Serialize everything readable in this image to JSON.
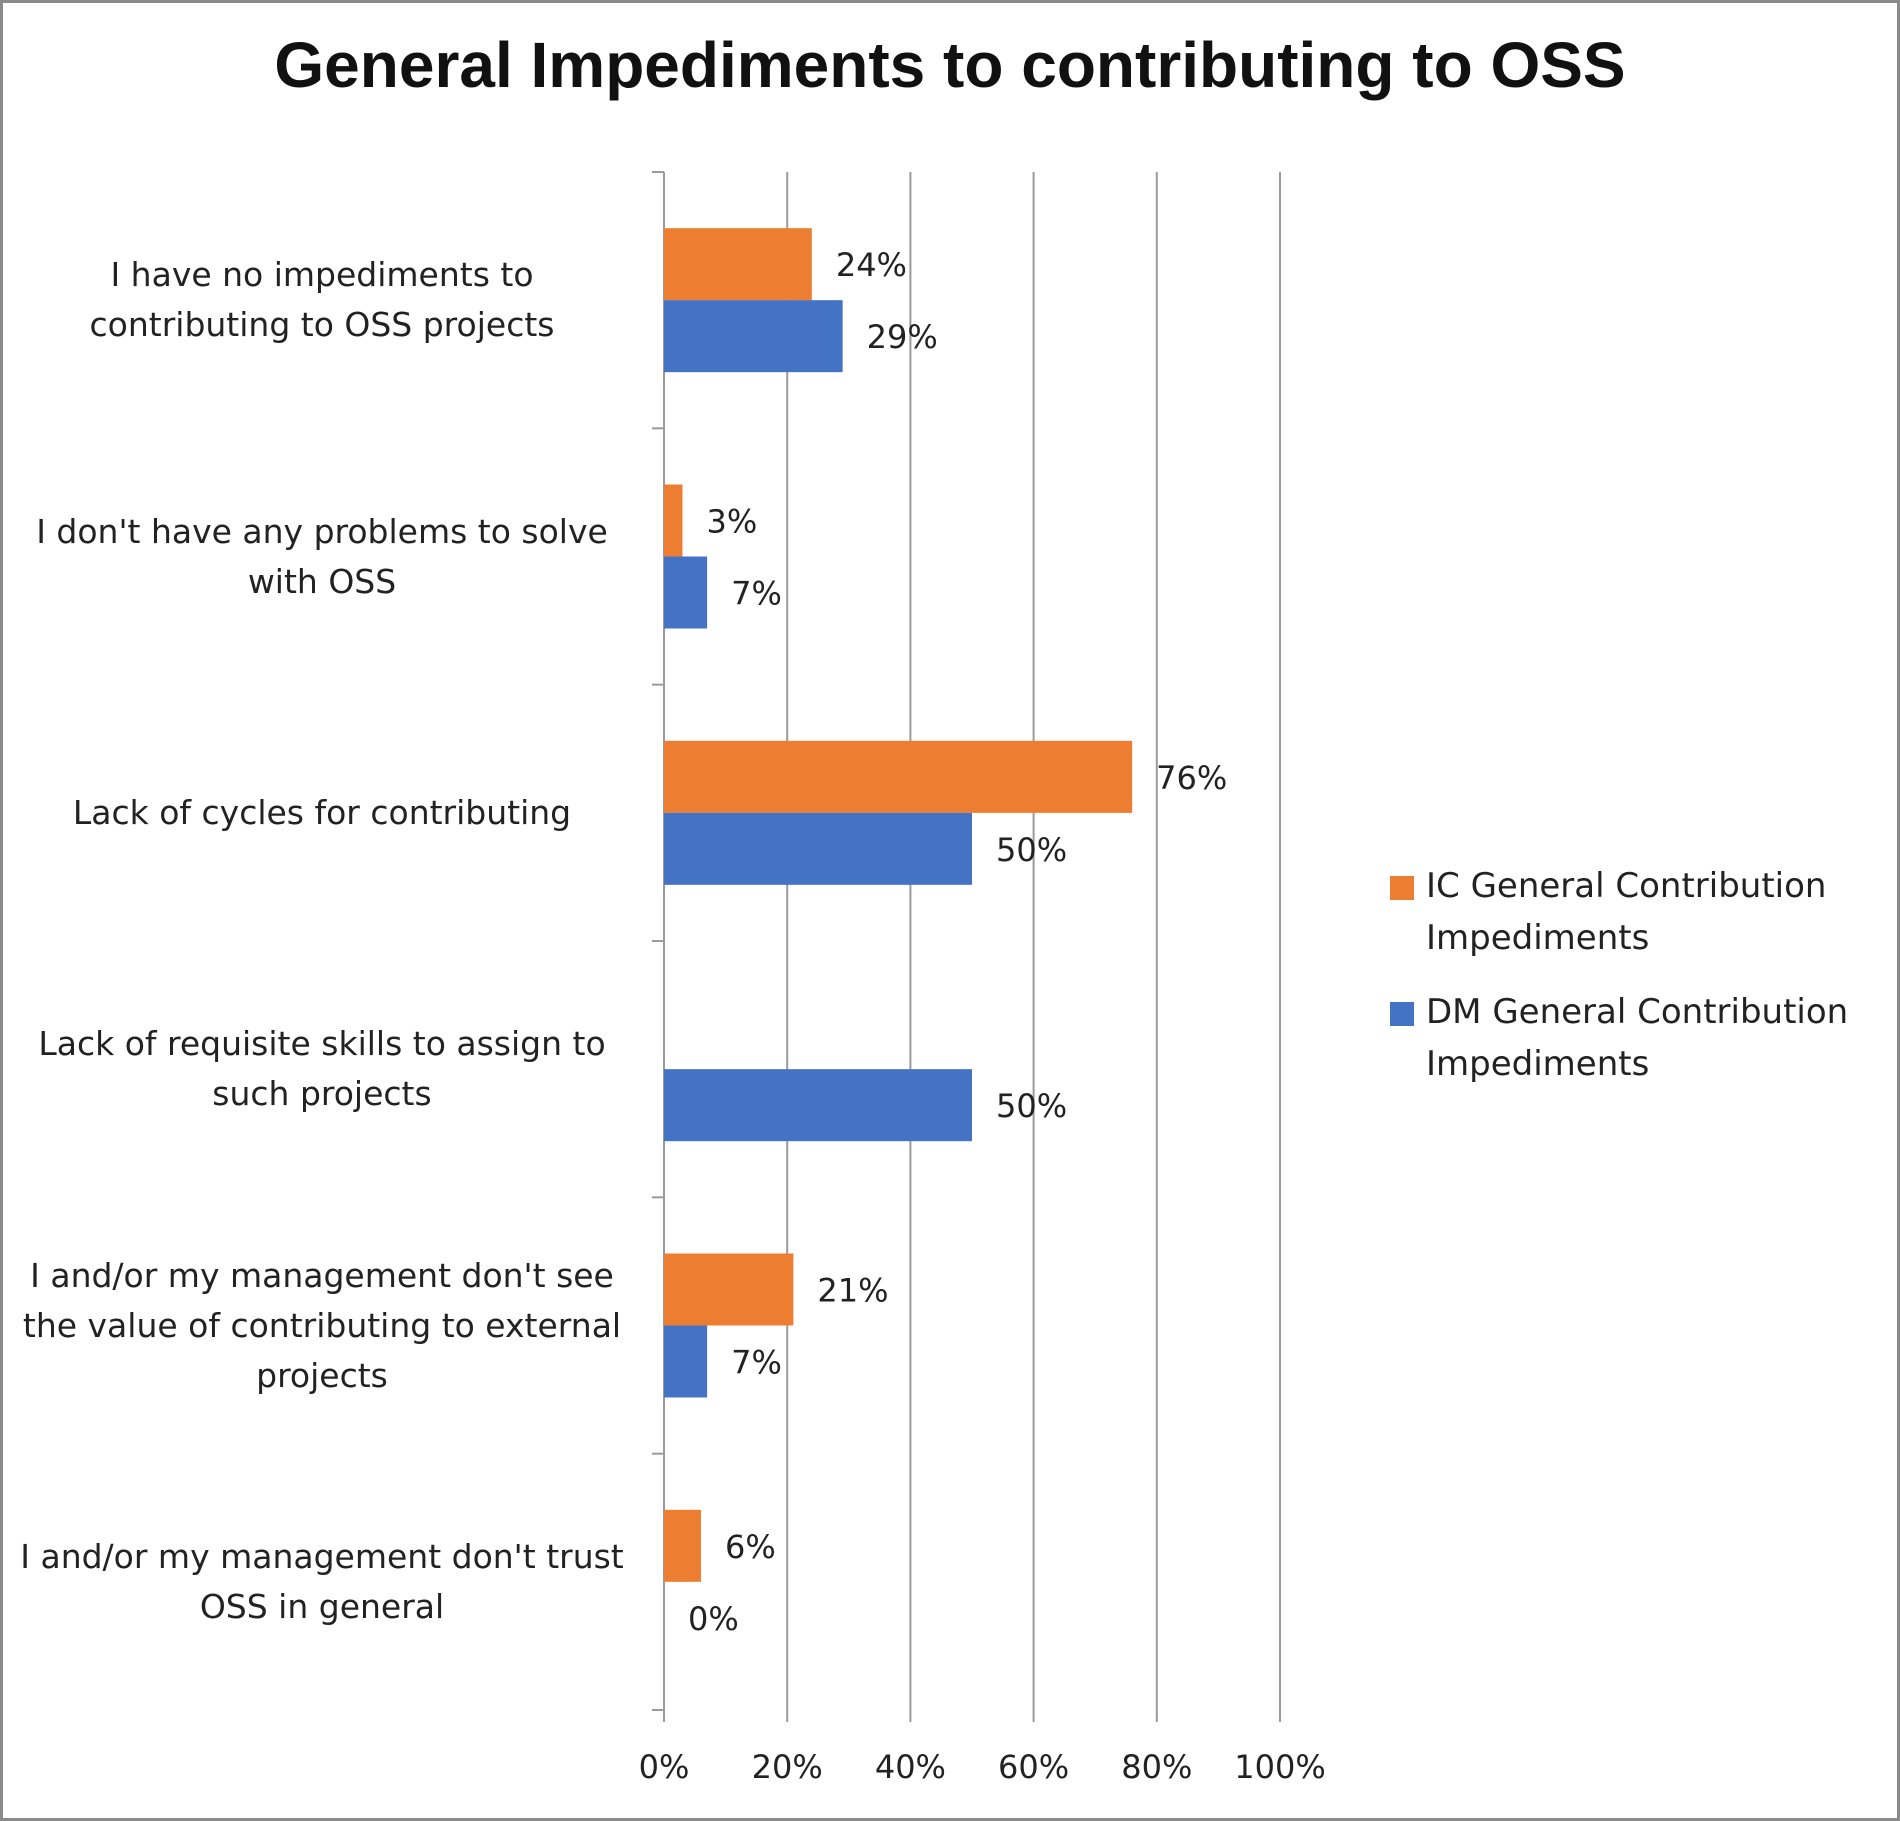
{
  "chart_data": {
    "type": "bar",
    "orientation": "horizontal",
    "title": "General Impediments to contributing to OSS",
    "categories": [
      "I have no impediments to contributing to OSS projects",
      "I don't have any problems to solve with OSS",
      "Lack of cycles for contributing",
      "Lack of requisite skills to assign to such projects",
      "I and/or my management don't see the value of contributing to external projects",
      "I and/or my management don't trust OSS in general"
    ],
    "series": [
      {
        "name": "IC General Contribution Impediments",
        "color": "#ed7d31",
        "values": [
          24,
          3,
          76,
          null,
          21,
          6
        ],
        "labels": [
          "24%",
          "3%",
          "76%",
          "",
          "21%",
          "6%"
        ]
      },
      {
        "name": "DM General Contribution Impediments",
        "color": "#4472c4",
        "values": [
          29,
          7,
          50,
          50,
          7,
          0
        ],
        "labels": [
          "29%",
          "7%",
          "50%",
          "50%",
          "7%",
          "0%"
        ]
      }
    ],
    "xlim": [
      0,
      100
    ],
    "xticks": [
      "0%",
      "20%",
      "40%",
      "60%",
      "80%",
      "100%"
    ],
    "grid": true,
    "legend_position": "right"
  }
}
